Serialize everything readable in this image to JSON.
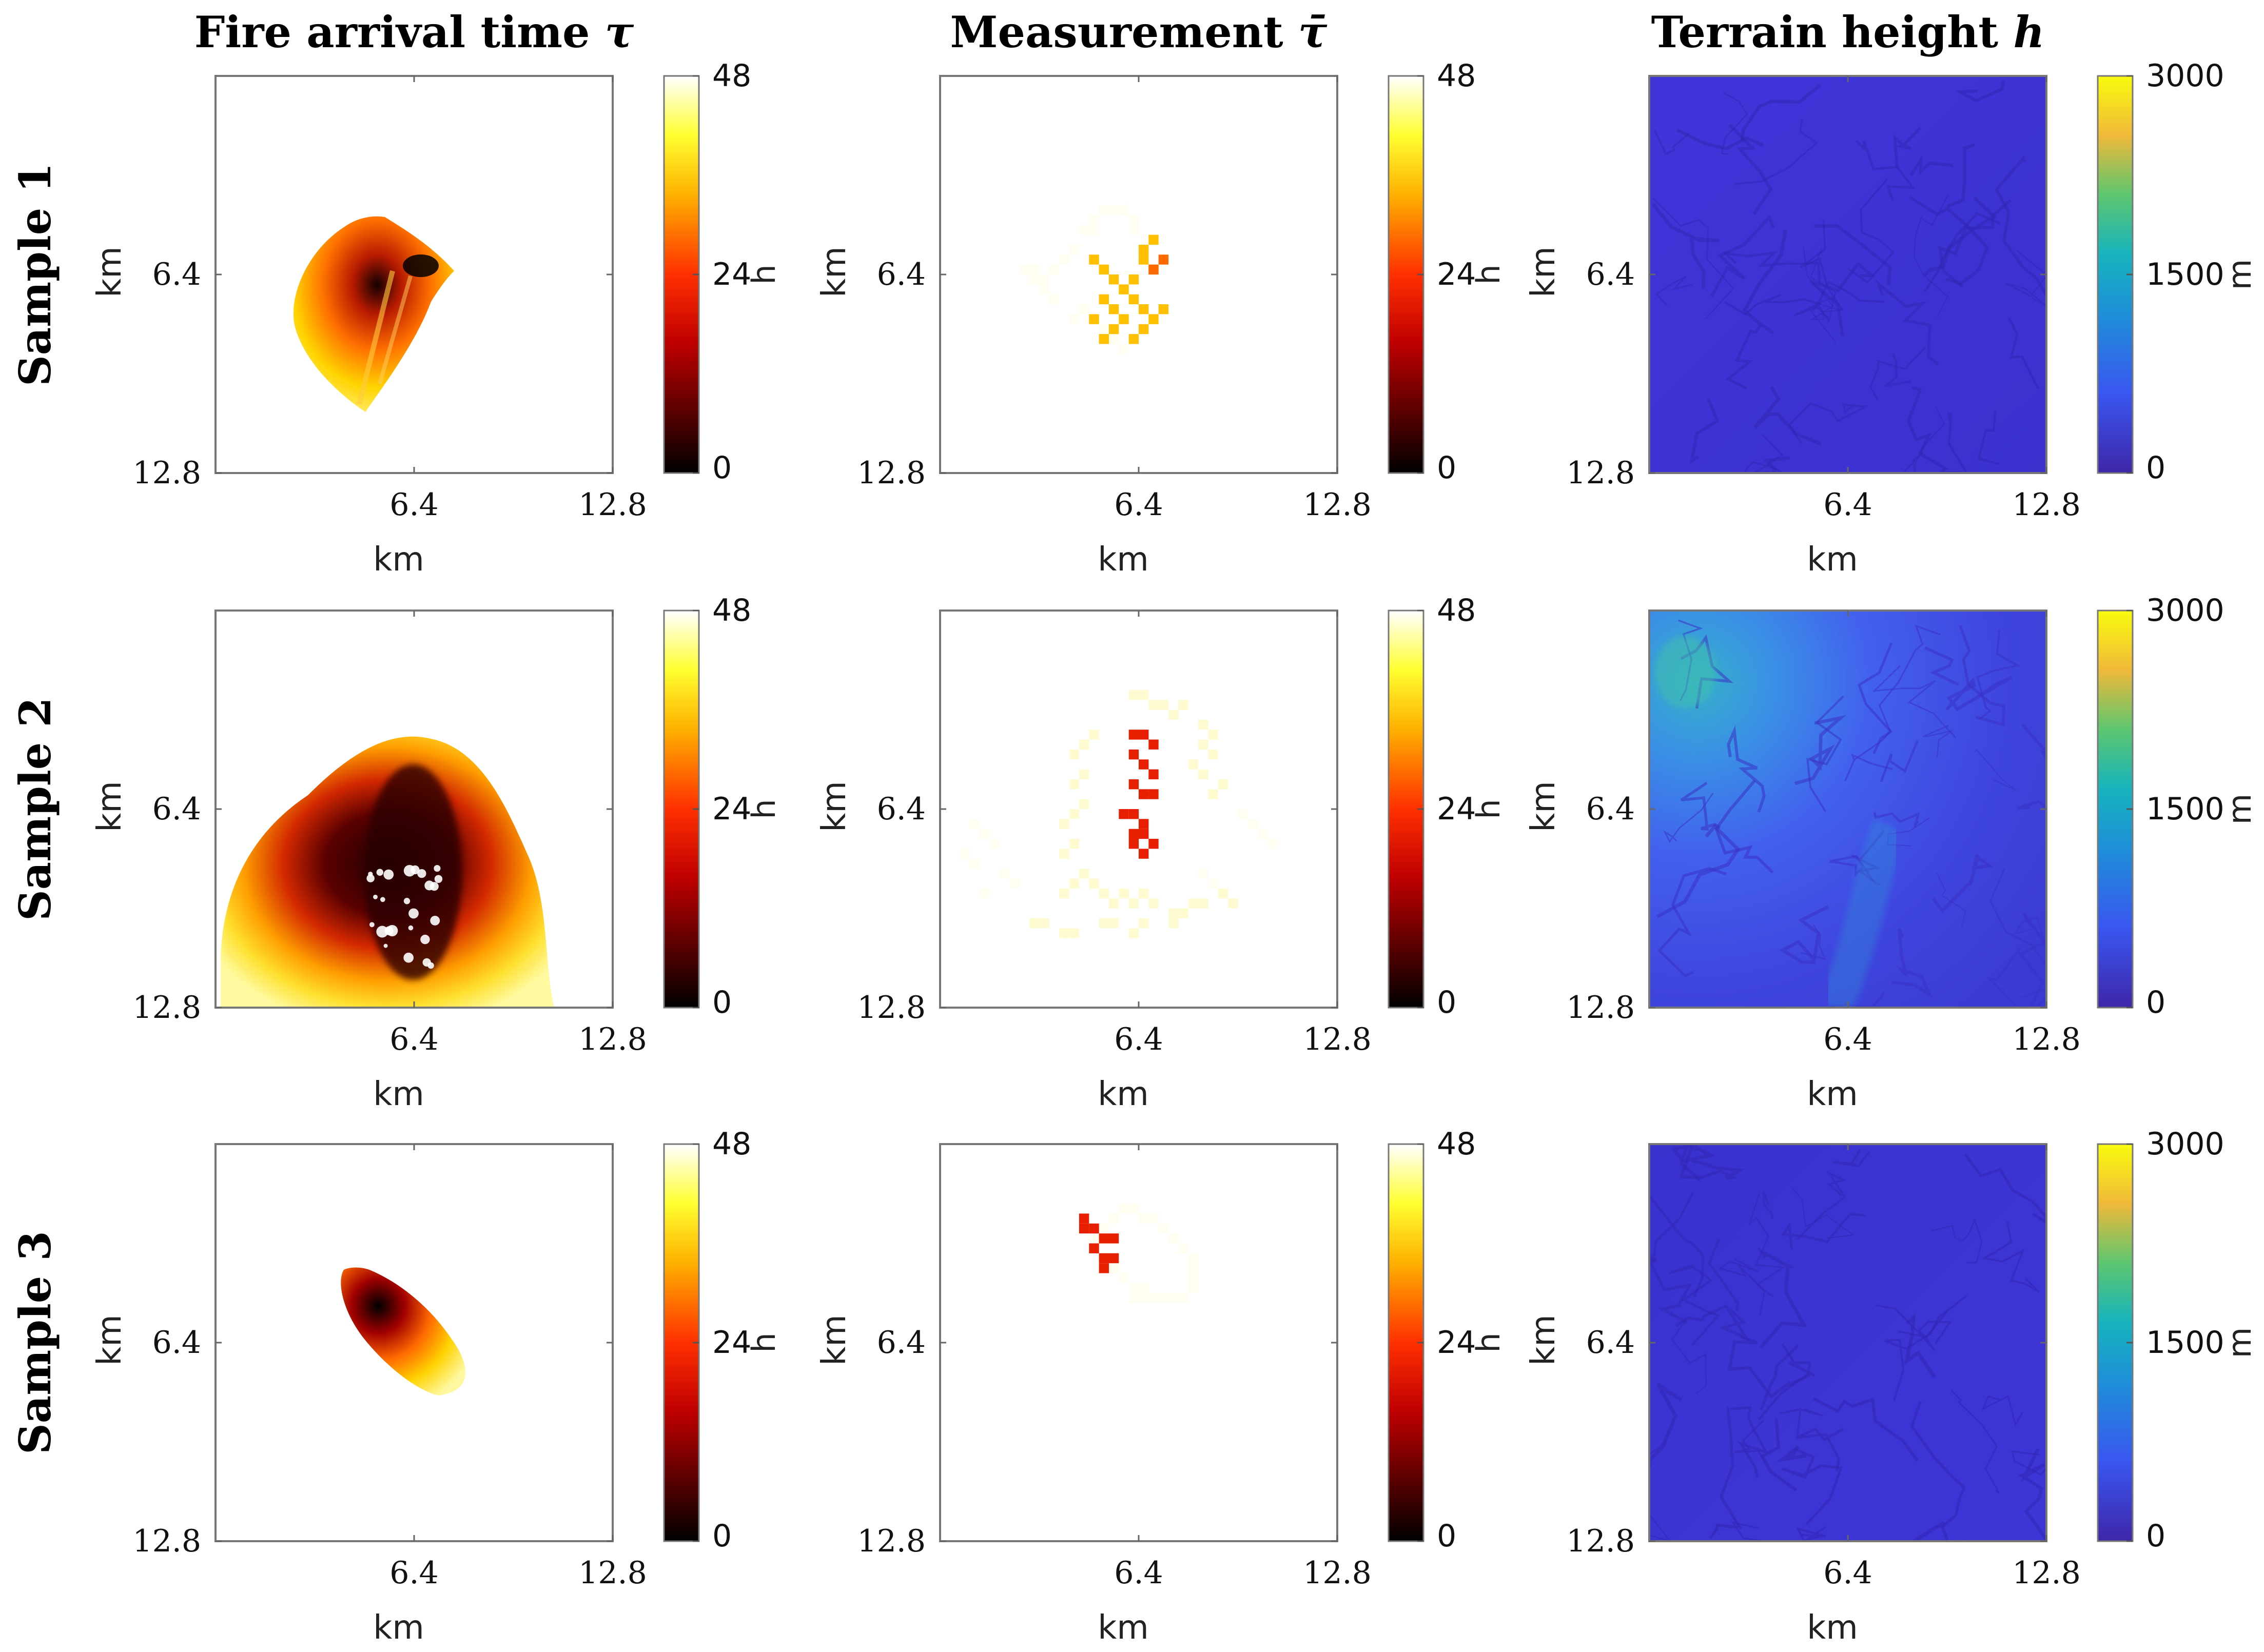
{
  "chart_data": {
    "type": "heatmap",
    "column_titles": [
      {
        "text": "Fire arrival time ",
        "symbol": "τ"
      },
      {
        "text": "Measurement ",
        "symbol": "τ̄"
      },
      {
        "text": "Terrain height ",
        "symbol": "h"
      }
    ],
    "rows": [
      {
        "label": "Sample 1",
        "panels": [
          {
            "kind": "fire",
            "xlabel": "km",
            "ylabel": "km",
            "xticks": [
              "6.4",
              "12.8"
            ],
            "yticks": [
              "6.4",
              "12.8"
            ],
            "colorbar": {
              "colormap": "hot",
              "min": 0,
              "max": 48,
              "ticks": [
                "0",
                "24",
                "48"
              ],
              "unit": "h"
            }
          },
          {
            "kind": "measure",
            "xlabel": "km",
            "ylabel": "km",
            "xticks": [
              "6.4",
              "12.8"
            ],
            "yticks": [
              "6.4",
              "12.8"
            ],
            "colorbar": {
              "colormap": "hot",
              "min": 0,
              "max": 48,
              "ticks": [
                "0",
                "24",
                "48"
              ],
              "unit": "h"
            }
          },
          {
            "kind": "terrain",
            "xlabel": "km",
            "ylabel": "km",
            "xticks": [
              "6.4",
              "12.8"
            ],
            "yticks": [
              "6.4",
              "12.8"
            ],
            "colorbar": {
              "colormap": "parula",
              "min": 0,
              "max": 3000,
              "ticks": [
                "0",
                "1500",
                "3000"
              ],
              "unit": "m"
            }
          }
        ]
      },
      {
        "label": "Sample 2",
        "panels": [
          {
            "kind": "fire",
            "xlabel": "km",
            "ylabel": "km",
            "xticks": [
              "6.4",
              "12.8"
            ],
            "yticks": [
              "6.4",
              "12.8"
            ],
            "colorbar": {
              "colormap": "hot",
              "min": 0,
              "max": 48,
              "ticks": [
                "0",
                "24",
                "48"
              ],
              "unit": "h"
            }
          },
          {
            "kind": "measure",
            "xlabel": "km",
            "ylabel": "km",
            "xticks": [
              "6.4",
              "12.8"
            ],
            "yticks": [
              "6.4",
              "12.8"
            ],
            "colorbar": {
              "colormap": "hot",
              "min": 0,
              "max": 48,
              "ticks": [
                "0",
                "24",
                "48"
              ],
              "unit": "h"
            }
          },
          {
            "kind": "terrain",
            "xlabel": "km",
            "ylabel": "km",
            "xticks": [
              "6.4",
              "12.8"
            ],
            "yticks": [
              "6.4",
              "12.8"
            ],
            "colorbar": {
              "colormap": "parula",
              "min": 0,
              "max": 3000,
              "ticks": [
                "0",
                "1500",
                "3000"
              ],
              "unit": "m"
            }
          }
        ]
      },
      {
        "label": "Sample 3",
        "panels": [
          {
            "kind": "fire",
            "xlabel": "km",
            "ylabel": "km",
            "xticks": [
              "6.4",
              "12.8"
            ],
            "yticks": [
              "6.4",
              "12.8"
            ],
            "colorbar": {
              "colormap": "hot",
              "min": 0,
              "max": 48,
              "ticks": [
                "0",
                "24",
                "48"
              ],
              "unit": "h"
            }
          },
          {
            "kind": "measure",
            "xlabel": "km",
            "ylabel": "km",
            "xticks": [
              "6.4",
              "12.8"
            ],
            "yticks": [
              "6.4",
              "12.8"
            ],
            "colorbar": {
              "colormap": "hot",
              "min": 0,
              "max": 48,
              "ticks": [
                "0",
                "24",
                "48"
              ],
              "unit": "h"
            }
          },
          {
            "kind": "terrain",
            "xlabel": "km",
            "ylabel": "km",
            "xticks": [
              "6.4",
              "12.8"
            ],
            "yticks": [
              "6.4",
              "12.8"
            ],
            "colorbar": {
              "colormap": "parula",
              "min": 0,
              "max": 3000,
              "ticks": [
                "0",
                "1500",
                "3000"
              ],
              "unit": "m"
            }
          }
        ]
      }
    ],
    "axis_range_km": [
      0,
      12.8
    ]
  },
  "colors": {
    "hot_low": "#000000",
    "hot_mid": "#e80000",
    "hot_high": "#ffff40",
    "hot_top": "#ffffff",
    "terrain_low": "#3b33c9",
    "terrain_mid": "#22a6c8",
    "terrain_high": "#f9e51e"
  }
}
